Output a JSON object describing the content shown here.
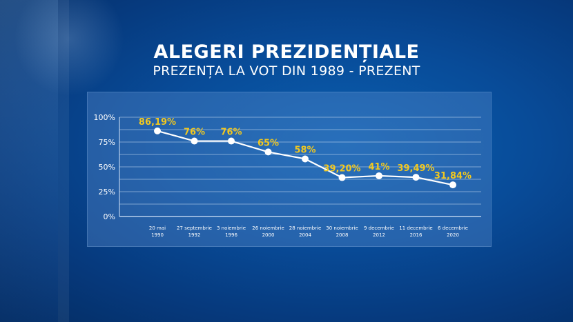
{
  "header": {
    "title": "ALEGERI PREZIDENȚIALE",
    "subtitle": "PREZENȚA LA VOT DIN 1989 - PREZENT"
  },
  "colors": {
    "background": "#084b98",
    "line": "#ffffff",
    "label": "#f2c81f",
    "grid": "#c9dcf3"
  },
  "chart_data": {
    "type": "line",
    "title": "PREZENȚA LA VOT DIN 1989 - PREZENT",
    "categories": [
      [
        "20 mai",
        "1990"
      ],
      [
        "27 septembrie",
        "1992"
      ],
      [
        "3 noiembrie",
        "1996"
      ],
      [
        "26 noiembrie",
        "2000"
      ],
      [
        "28 noiembrie",
        "2004"
      ],
      [
        "30 noiembrie",
        "2008"
      ],
      [
        "9 decembrie",
        "2012"
      ],
      [
        "11 decembrie",
        "2016"
      ],
      [
        "6 decembrie",
        "2020"
      ]
    ],
    "values": [
      86.19,
      76,
      76,
      65,
      58,
      39.2,
      41,
      39.49,
      31.84
    ],
    "data_labels": [
      "86,19%",
      "76%",
      "76%",
      "65%",
      "58%",
      "39,20%",
      "41%",
      "39,49%",
      "31,84%"
    ],
    "yticks": [
      "100%",
      "75%",
      "50%",
      "25%",
      "0%"
    ],
    "ylim": [
      0,
      100
    ],
    "grid": true,
    "legend": "none"
  }
}
